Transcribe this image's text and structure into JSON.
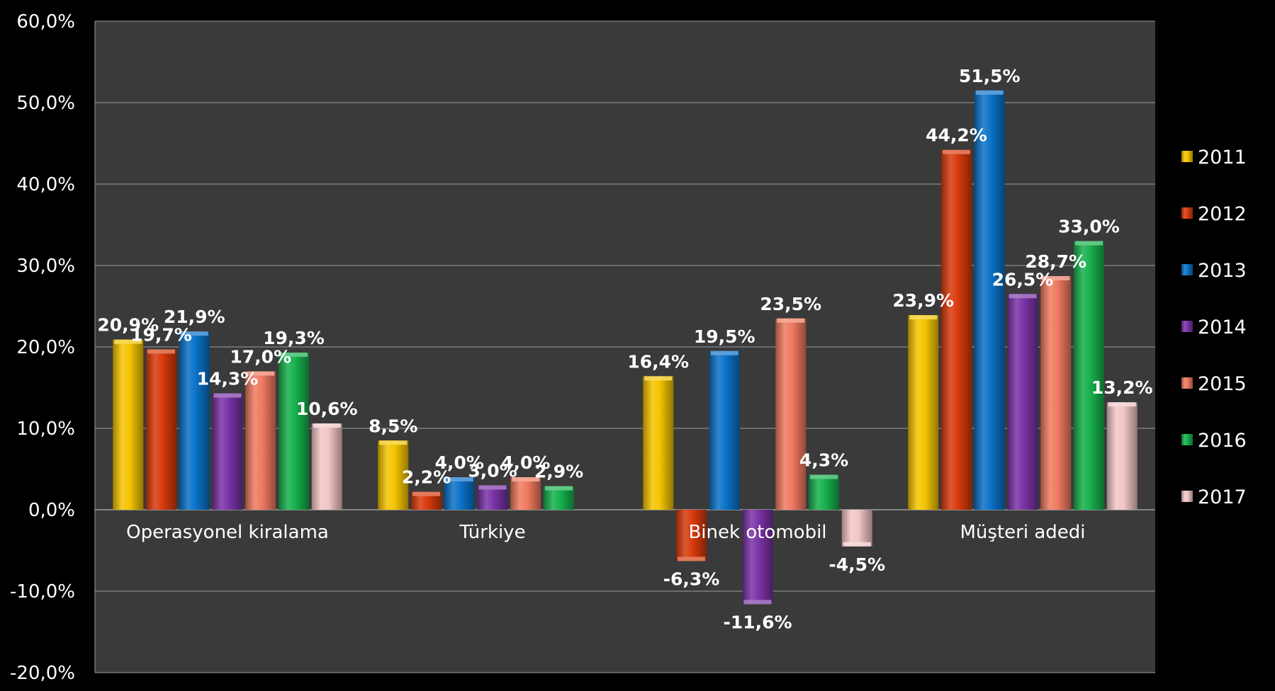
{
  "chart_data": {
    "type": "bar",
    "categories": [
      "Operasyonel kiralama",
      "Türkiye",
      "Binek otomobil",
      "Müşteri adedi"
    ],
    "series": [
      {
        "name": "2011",
        "color": "#f5c400",
        "values": [
          20.9,
          8.5,
          16.4,
          23.9
        ],
        "labels": [
          "20,9%",
          "8,5%",
          "16,4%",
          "23,9%"
        ]
      },
      {
        "name": "2012",
        "color": "#d93a0c",
        "values": [
          19.7,
          2.2,
          -6.3,
          44.2
        ],
        "labels": [
          "19,7%",
          "2,2%",
          "-6,3%",
          "44,2%"
        ]
      },
      {
        "name": "2013",
        "color": "#0a72c8",
        "values": [
          21.9,
          4.0,
          19.5,
          51.5
        ],
        "labels": [
          "21,9%",
          "4,0%",
          "19,5%",
          "51,5%"
        ]
      },
      {
        "name": "2014",
        "color": "#7a32a6",
        "values": [
          14.3,
          3.0,
          -11.6,
          26.5
        ],
        "labels": [
          "14,3%",
          "3,0%",
          "-11,6%",
          "26,5%"
        ]
      },
      {
        "name": "2015",
        "color": "#f07a60",
        "values": [
          17.0,
          4.0,
          23.5,
          28.7
        ],
        "labels": [
          "17,0%",
          "4,0%",
          "23,5%",
          "28,7%"
        ]
      },
      {
        "name": "2016",
        "color": "#16b04c",
        "values": [
          19.3,
          2.9,
          4.3,
          33.0
        ],
        "labels": [
          "19,3%",
          "2,9%",
          "4,3%",
          "33,0%"
        ]
      },
      {
        "name": "2017",
        "color": "#f3c6c6",
        "values": [
          10.6,
          null,
          -4.5,
          13.2
        ],
        "labels": [
          "10,6%",
          "",
          "-4,5%",
          "13,2%"
        ]
      }
    ],
    "yticks": [
      "60,0%",
      "50,0%",
      "40,0%",
      "30,0%",
      "20,0%",
      "10,0%",
      "0,0%",
      "-10,0%",
      "-20,0%"
    ],
    "ylim": [
      -20,
      60
    ],
    "grid": true,
    "legend_position": "right",
    "background": "#3a3a3a",
    "title": "",
    "xlabel": "",
    "ylabel": ""
  }
}
